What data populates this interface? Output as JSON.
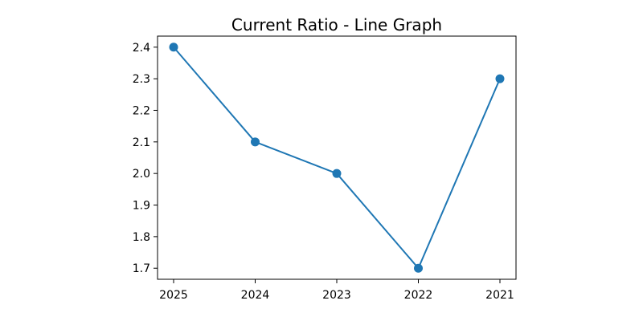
{
  "chart_data": {
    "type": "line",
    "title": "Current Ratio - Line Graph",
    "xlabel": "",
    "ylabel": "",
    "categories": [
      "2025",
      "2024",
      "2023",
      "2022",
      "2021"
    ],
    "series": [
      {
        "values": [
          2.4,
          2.1,
          2.0,
          1.7,
          2.3
        ],
        "color": "#1f77b4",
        "marker": "circle"
      }
    ],
    "yticks": [
      "1.7",
      "1.8",
      "1.9",
      "2.0",
      "2.1",
      "2.2",
      "2.3",
      "2.4"
    ],
    "ylim": [
      1.665,
      2.435
    ],
    "grid": false,
    "legend": "none"
  }
}
